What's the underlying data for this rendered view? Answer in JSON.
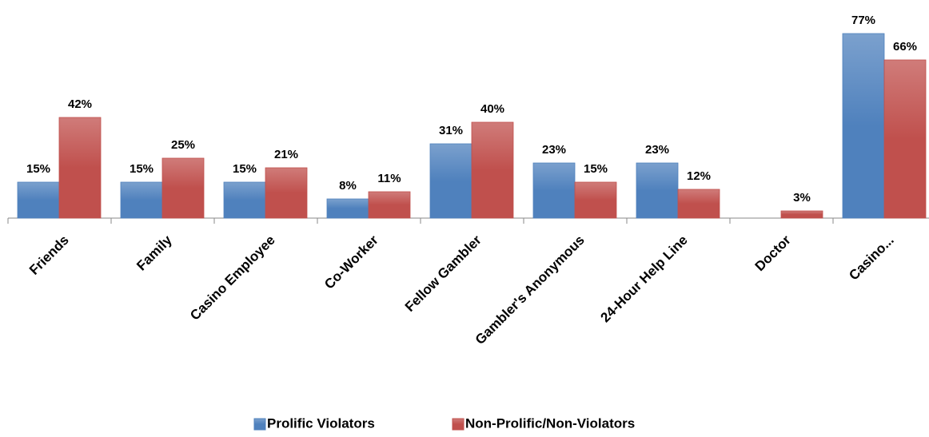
{
  "chart_data": {
    "type": "bar",
    "categories": [
      "Friends",
      "Family",
      "Casino Employee",
      "Co-Worker",
      "Fellow Gambler",
      "Gambler's Anonymous",
      "24-Hour Help Line",
      "Doctor",
      "Casino..."
    ],
    "series": [
      {
        "name": "Prolific Violators",
        "color": "#4f81bd",
        "values": [
          15,
          15,
          15,
          8,
          31,
          23,
          23,
          null,
          77
        ],
        "value_labels": [
          "15%",
          "15%",
          "15%",
          "8%",
          "31%",
          "23%",
          "23%",
          null,
          "77%"
        ]
      },
      {
        "name": "Non-Prolific/Non-Violators",
        "color": "#c0504d",
        "values": [
          42,
          25,
          21,
          11,
          40,
          15,
          12,
          3,
          66
        ],
        "value_labels": [
          "42%",
          "25%",
          "21%",
          "11%",
          "40%",
          "15%",
          "12%",
          "3%",
          "66%"
        ]
      }
    ]
  }
}
